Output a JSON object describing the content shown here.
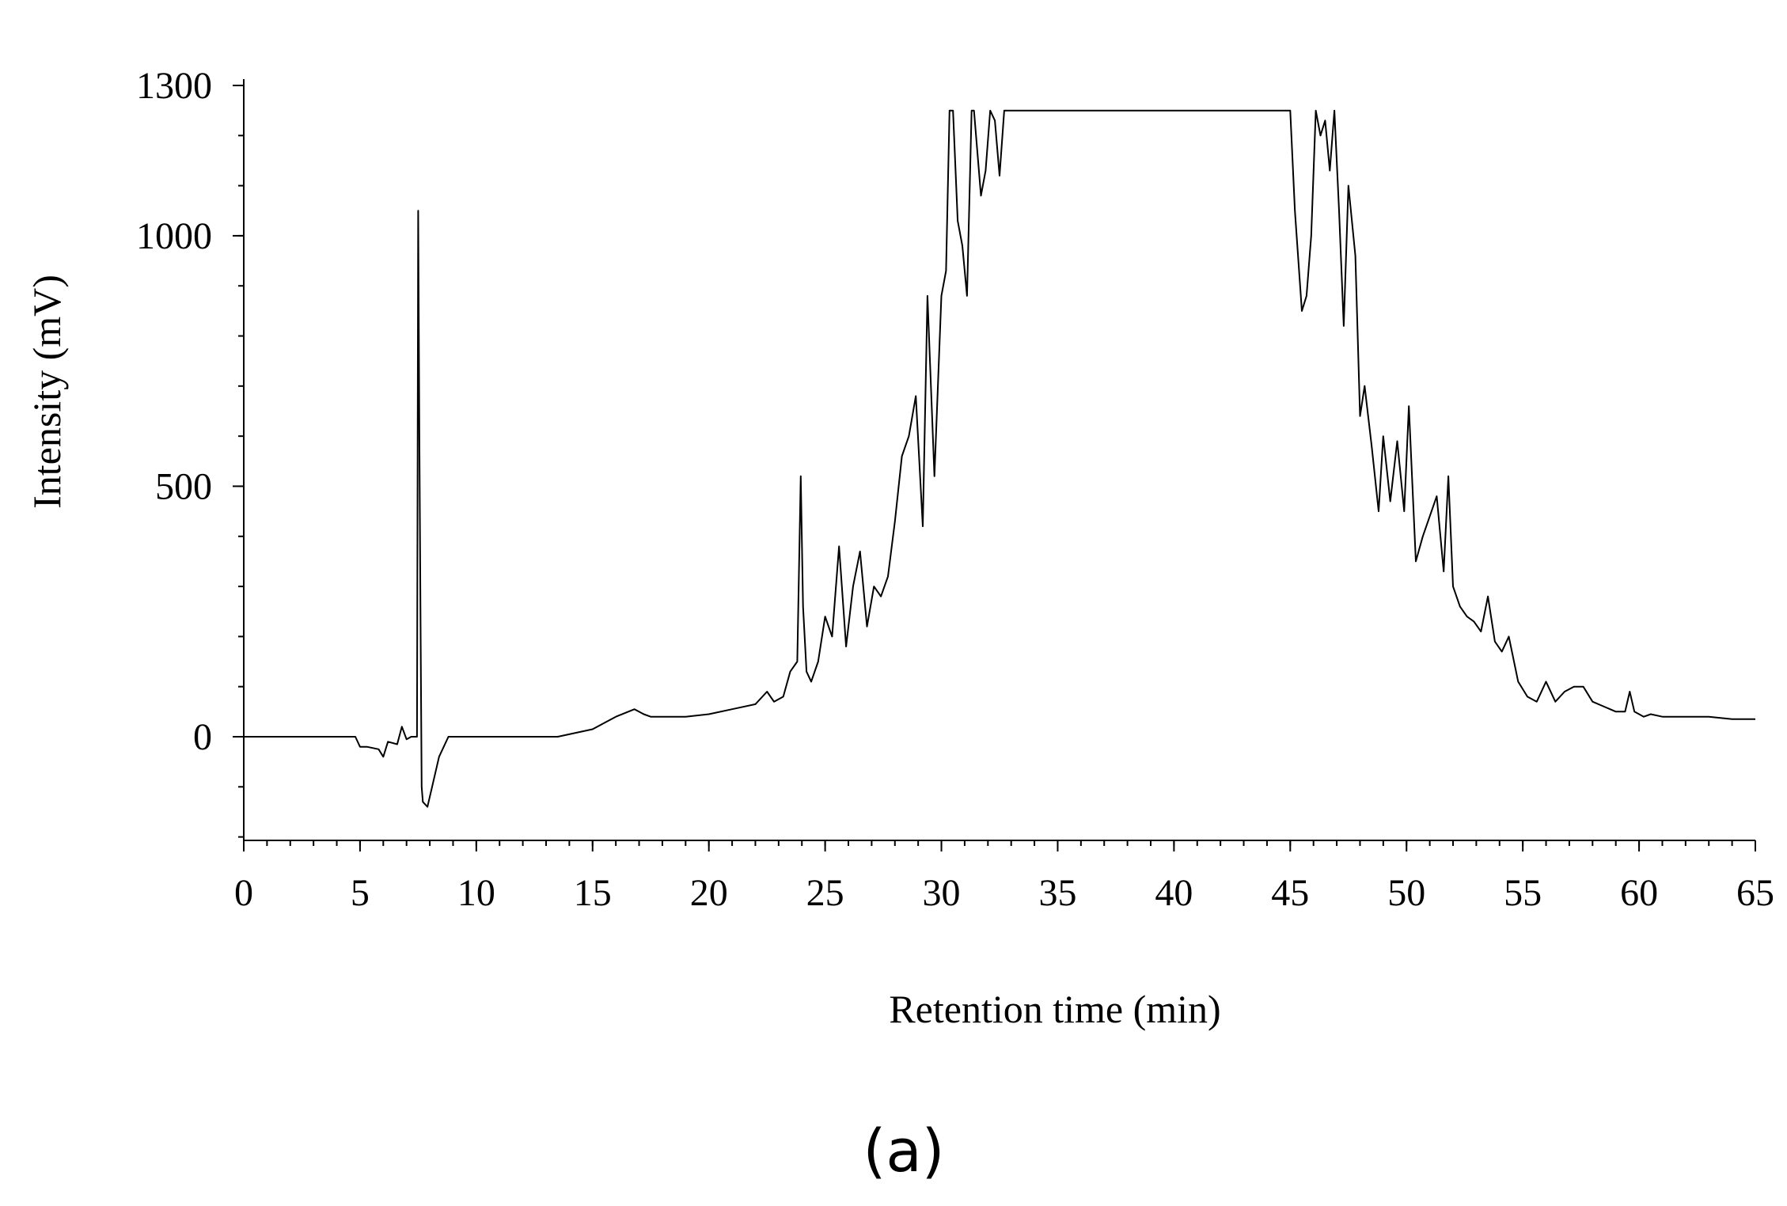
{
  "chart_data": {
    "type": "line",
    "title": "",
    "panel_label": "(a)",
    "xlabel": "Retention time (min)",
    "ylabel": "Intensity (mV)",
    "xlim": [
      0,
      65
    ],
    "ylim": [
      -200,
      1300
    ],
    "x_ticks": [
      0,
      5,
      10,
      15,
      20,
      25,
      30,
      35,
      40,
      45,
      50,
      55,
      60,
      65
    ],
    "y_ticks": [
      0,
      500,
      1000,
      1300
    ],
    "x_minor_step": 1,
    "y_minor_step": 100,
    "grid": false,
    "legend": "none",
    "series": [
      {
        "x": [
          0,
          4.8,
          5.0,
          5.3,
          5.8,
          6.0,
          6.2,
          6.6,
          6.8,
          7.0,
          7.2,
          7.45,
          7.5,
          7.55,
          7.6,
          7.65,
          7.7,
          7.9,
          8.1,
          8.4,
          8.8,
          9.2,
          10,
          12,
          13.5,
          15,
          16,
          16.8,
          17.2,
          17.5,
          18,
          19,
          20,
          21,
          22,
          22.5,
          22.8,
          23.2,
          23.5,
          23.8,
          23.95,
          24.05,
          24.2,
          24.4,
          24.7,
          25.0,
          25.3,
          25.6,
          25.9,
          26.2,
          26.5,
          26.8,
          27.1,
          27.4,
          27.7,
          28.0,
          28.3,
          28.6,
          28.9,
          29.2,
          29.4,
          29.7,
          30.0,
          30.2,
          30.35,
          30.5,
          30.7,
          30.9,
          31.1,
          31.3,
          31.4,
          31.7,
          31.9,
          32.1,
          32.3,
          32.5,
          32.7,
          32.9,
          44.9,
          45.0,
          45.2,
          45.5,
          45.7,
          45.9,
          46.1,
          46.3,
          46.5,
          46.7,
          46.9,
          47.1,
          47.3,
          47.5,
          47.8,
          48.0,
          48.2,
          48.5,
          48.8,
          49.0,
          49.3,
          49.6,
          49.9,
          50.1,
          50.4,
          50.7,
          51.0,
          51.3,
          51.6,
          51.8,
          52.0,
          52.3,
          52.6,
          52.9,
          53.2,
          53.5,
          53.8,
          54.1,
          54.4,
          54.8,
          55.2,
          55.6,
          56.0,
          56.4,
          56.8,
          57.2,
          57.6,
          58.0,
          58.5,
          59.0,
          59.4,
          59.6,
          59.8,
          60.2,
          60.5,
          61,
          62,
          63,
          64,
          65
        ],
        "y": [
          0,
          0,
          -20,
          -20,
          -25,
          -40,
          -10,
          -15,
          20,
          -5,
          0,
          0,
          1050,
          600,
          250,
          -100,
          -130,
          -140,
          -100,
          -40,
          0,
          0,
          0,
          0,
          0,
          15,
          40,
          55,
          45,
          40,
          40,
          40,
          45,
          55,
          65,
          90,
          70,
          80,
          130,
          150,
          520,
          260,
          130,
          110,
          150,
          240,
          200,
          380,
          180,
          300,
          370,
          220,
          300,
          280,
          320,
          430,
          560,
          600,
          680,
          420,
          880,
          520,
          880,
          930,
          1250,
          1250,
          1030,
          980,
          880,
          1250,
          1250,
          1080,
          1130,
          1250,
          1230,
          1120,
          1250,
          1250,
          1250,
          1250,
          1050,
          850,
          880,
          1000,
          1250,
          1200,
          1230,
          1130,
          1250,
          1050,
          820,
          1100,
          960,
          640,
          700,
          580,
          450,
          600,
          470,
          590,
          450,
          660,
          350,
          400,
          440,
          480,
          330,
          520,
          300,
          260,
          240,
          230,
          210,
          280,
          190,
          170,
          200,
          110,
          80,
          70,
          110,
          70,
          90,
          100,
          100,
          70,
          60,
          50,
          50,
          90,
          50,
          40,
          45,
          40,
          40,
          40,
          35,
          35
        ]
      }
    ]
  }
}
